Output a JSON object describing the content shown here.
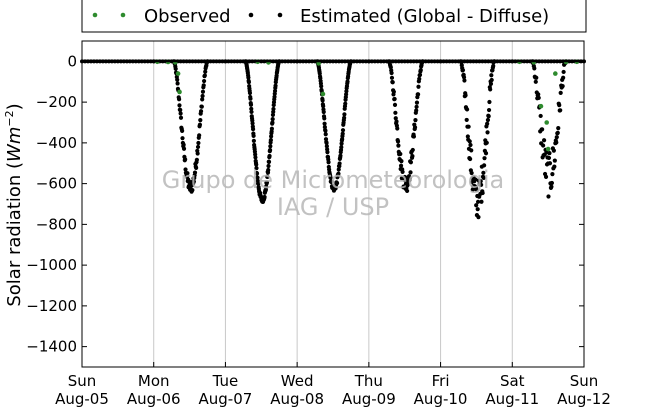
{
  "chart_data": {
    "type": "scatter",
    "ylabel_text": "Solar radiation (",
    "ylabel_unit": "Wm",
    "ylabel_exp": "−2",
    "ylabel_close": ")",
    "ylim": [
      -1500,
      100
    ],
    "yticks": [
      0,
      -200,
      -400,
      -600,
      -800,
      -1000,
      -1200,
      -1400
    ],
    "xlim": [
      0,
      7
    ],
    "xticks": [
      {
        "day": "Sun",
        "date": "Aug-05"
      },
      {
        "day": "Mon",
        "date": "Aug-06"
      },
      {
        "day": "Tue",
        "date": "Aug-07"
      },
      {
        "day": "Wed",
        "date": "Aug-08"
      },
      {
        "day": "Thu",
        "date": "Aug-09"
      },
      {
        "day": "Fri",
        "date": "Aug-10"
      },
      {
        "day": "Sat",
        "date": "Aug-11"
      },
      {
        "day": "Sun",
        "date": "Aug-12"
      }
    ],
    "grid": "vertical",
    "legend_position": "top",
    "series": [
      {
        "name": "Observed",
        "color": "#2e8b2e",
        "points": [
          [
            1.05,
            -2
          ],
          [
            1.2,
            -3
          ],
          [
            1.3,
            -5
          ],
          [
            1.34,
            -60
          ],
          [
            1.36,
            -150
          ],
          [
            2.45,
            -2
          ],
          [
            2.6,
            -5
          ],
          [
            3.3,
            -10
          ],
          [
            3.36,
            -160
          ],
          [
            6.1,
            -2
          ],
          [
            6.3,
            -5
          ],
          [
            6.4,
            -220
          ],
          [
            6.48,
            -300
          ],
          [
            6.5,
            -430
          ],
          [
            6.6,
            -60
          ],
          [
            6.75,
            -3
          ],
          [
            6.9,
            -2
          ]
        ]
      },
      {
        "name": "Estimated (Global - Diffuse)",
        "color": "#000000",
        "days": [
          {
            "start": 1.28,
            "end": 1.75,
            "depth": -620,
            "noise": 30,
            "n": 90
          },
          {
            "start": 2.28,
            "end": 2.75,
            "depth": -680,
            "noise": 12,
            "n": 130
          },
          {
            "start": 3.28,
            "end": 3.75,
            "depth": -625,
            "noise": 12,
            "n": 120
          },
          {
            "start": 4.28,
            "end": 4.75,
            "depth": -600,
            "noise": 45,
            "n": 90
          },
          {
            "start": 5.28,
            "end": 5.75,
            "depth": -680,
            "noise": 95,
            "n": 90
          },
          {
            "start": 6.28,
            "end": 6.75,
            "depth": -560,
            "noise": 110,
            "n": 70
          }
        ]
      }
    ]
  },
  "watermark": {
    "line1": "Grupo de Micrometeorologia",
    "line2": "IAG / USP"
  }
}
